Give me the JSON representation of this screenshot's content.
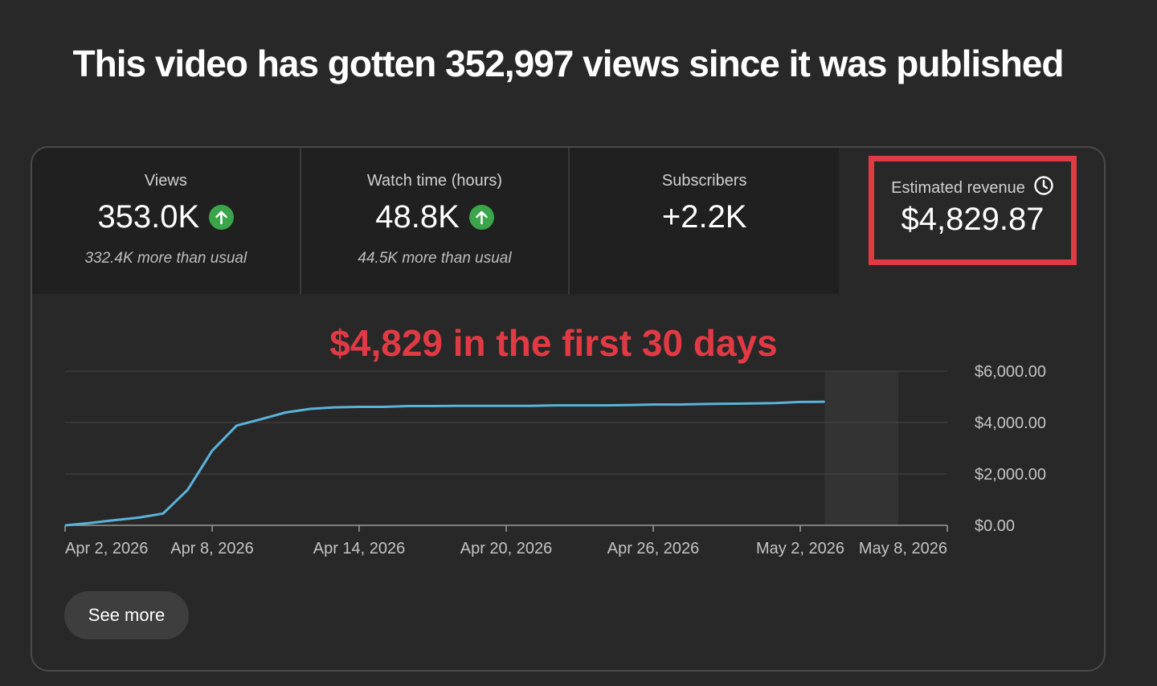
{
  "headline": "This video has gotten 352,997 views since it was published",
  "metrics": [
    {
      "label": "Views",
      "value": "353.0K",
      "trend": "up",
      "note": "332.4K more than usual"
    },
    {
      "label": "Watch time (hours)",
      "value": "48.8K",
      "trend": "up",
      "note": "44.5K more than usual"
    },
    {
      "label": "Subscribers",
      "value": "+2.2K",
      "trend": "",
      "note": ""
    }
  ],
  "revenue": {
    "label": "Estimated revenue",
    "value": "$4,829.87",
    "icon": "clock-icon"
  },
  "overlay_text": "$4,829 in the first 30 days",
  "see_more_label": "See more",
  "colors": {
    "accent_red": "#e23a45",
    "line": "#5bb3dc",
    "up_green": "#3aa54a"
  },
  "chart_data": {
    "type": "line",
    "x_ticks": [
      "Apr 2, 2026",
      "Apr 8, 2026",
      "Apr 14, 2026",
      "Apr 20, 2026",
      "Apr 26, 2026",
      "May 2, 2026",
      "May 8, 2026"
    ],
    "y_ticks": [
      "$6,000.00",
      "$4,000.00",
      "$2,000.00",
      "$0.00"
    ],
    "ylim": [
      0,
      6000
    ],
    "xlim": [
      "Apr 2, 2026",
      "May 8, 2026"
    ],
    "grid": true,
    "shaded_range": [
      "May 3, 2026",
      "May 6, 2026"
    ],
    "series": [
      {
        "x": [
          "Apr 2, 2026",
          "Apr 3, 2026",
          "Apr 4, 2026",
          "Apr 5, 2026",
          "Apr 6, 2026",
          "Apr 7, 2026",
          "Apr 8, 2026",
          "Apr 9, 2026",
          "Apr 10, 2026",
          "Apr 11, 2026",
          "Apr 12, 2026",
          "Apr 13, 2026",
          "Apr 14, 2026",
          "Apr 15, 2026",
          "Apr 16, 2026",
          "Apr 17, 2026",
          "Apr 18, 2026",
          "Apr 19, 2026",
          "Apr 20, 2026",
          "Apr 21, 2026",
          "Apr 22, 2026",
          "Apr 23, 2026",
          "Apr 24, 2026",
          "Apr 25, 2026",
          "Apr 26, 2026",
          "Apr 27, 2026",
          "Apr 28, 2026",
          "Apr 29, 2026",
          "Apr 30, 2026",
          "May 1, 2026",
          "May 2, 2026",
          "May 3, 2026"
        ],
        "values": [
          0,
          90,
          200,
          300,
          460,
          1380,
          2900,
          3880,
          4130,
          4390,
          4530,
          4590,
          4610,
          4610,
          4640,
          4640,
          4650,
          4650,
          4650,
          4650,
          4670,
          4670,
          4670,
          4680,
          4700,
          4700,
          4720,
          4730,
          4740,
          4760,
          4800,
          4810
        ]
      }
    ]
  }
}
